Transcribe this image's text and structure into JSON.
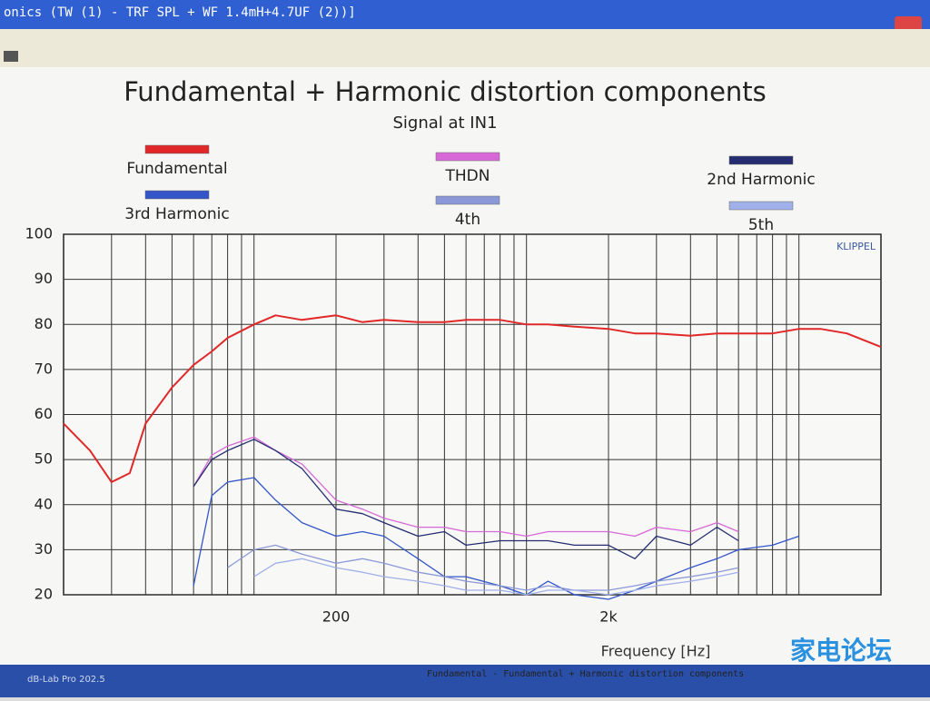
{
  "window": {
    "title": "onics (TW (1) - TRF SPL + WF 1.4mH+4.7UF (2))]",
    "taskbar_items": [
      "dB-Lab Pro 202.5",
      "Fundamental - Fundamental + Harmonic distortion components"
    ],
    "watermark": "家电论坛"
  },
  "chart_data": {
    "type": "line",
    "title": "Fundamental + Harmonic distortion components",
    "subtitle": "Signal at IN1",
    "brand": "KLIPPEL",
    "x_label": "Frequency [Hz]",
    "x_log": true,
    "grid": true,
    "xlim": [
      20,
      20000
    ],
    "xticks": [
      {
        "value": 200,
        "label": "200"
      },
      {
        "value": 2000,
        "label": "2k"
      }
    ],
    "x_grid": [
      30,
      40,
      50,
      60,
      70,
      80,
      90,
      100,
      300,
      400,
      500,
      600,
      700,
      800,
      900,
      1000,
      3000,
      4000,
      5000,
      6000,
      7000,
      8000,
      9000,
      10000
    ],
    "ylim": [
      20,
      100
    ],
    "yticks": [
      20,
      30,
      40,
      50,
      60,
      70,
      80,
      90,
      100
    ],
    "x": [
      20,
      25,
      30,
      35,
      40,
      50,
      60,
      70,
      80,
      100,
      120,
      150,
      200,
      250,
      300,
      400,
      500,
      600,
      800,
      1000,
      1200,
      1500,
      2000,
      2500,
      3000,
      4000,
      5000,
      6000,
      8000,
      10000,
      12000,
      15000,
      20000
    ],
    "series": [
      {
        "name": "Fundamental",
        "color": "#e02828",
        "values": [
          58,
          52,
          45,
          47,
          58,
          66,
          71,
          74,
          77,
          80,
          82,
          81,
          82,
          80.5,
          81,
          80.5,
          80.5,
          81,
          81,
          80,
          80,
          79.5,
          79,
          78,
          78,
          77.5,
          78,
          78,
          78,
          79,
          79,
          78,
          75
        ]
      },
      {
        "name": "THDN",
        "color": "#d868d8",
        "values": [
          null,
          null,
          null,
          null,
          null,
          null,
          44,
          51,
          53,
          55,
          52,
          49,
          41,
          39,
          37,
          35,
          35,
          34,
          34,
          33,
          34,
          34,
          34,
          33,
          35,
          34,
          36,
          34,
          null,
          null,
          null,
          null,
          null
        ]
      },
      {
        "name": "2nd Harmonic",
        "color": "#252d70",
        "values": [
          null,
          null,
          null,
          null,
          null,
          null,
          44,
          50,
          52,
          54.5,
          52,
          48,
          39,
          38,
          36,
          33,
          34,
          31,
          32,
          32,
          32,
          31,
          31,
          28,
          33,
          31,
          35,
          32,
          null,
          null,
          null,
          null,
          null
        ]
      },
      {
        "name": "3rd Harmonic",
        "color": "#3355c8",
        "values": [
          null,
          null,
          null,
          null,
          null,
          null,
          22,
          42,
          45,
          46,
          41,
          36,
          33,
          34,
          33,
          28,
          24,
          24,
          22,
          20,
          23,
          20,
          19,
          21,
          23,
          26,
          28,
          30,
          31,
          33,
          null,
          null,
          null
        ]
      },
      {
        "name": "4th",
        "color": "#8a98d8",
        "values": [
          null,
          null,
          null,
          null,
          null,
          null,
          null,
          null,
          26,
          30,
          31,
          29,
          27,
          28,
          27,
          25,
          24,
          23,
          22,
          21,
          22,
          21,
          21,
          22,
          23,
          24,
          25,
          26,
          null,
          null,
          null,
          null,
          null
        ]
      },
      {
        "name": "5th",
        "color": "#a0b0e8",
        "values": [
          null,
          null,
          null,
          null,
          null,
          null,
          null,
          null,
          null,
          24,
          27,
          28,
          26,
          25,
          24,
          23,
          22,
          21,
          21,
          20,
          21,
          21,
          20,
          21,
          22,
          23,
          24,
          25,
          null,
          null,
          null,
          null,
          null
        ]
      }
    ]
  }
}
